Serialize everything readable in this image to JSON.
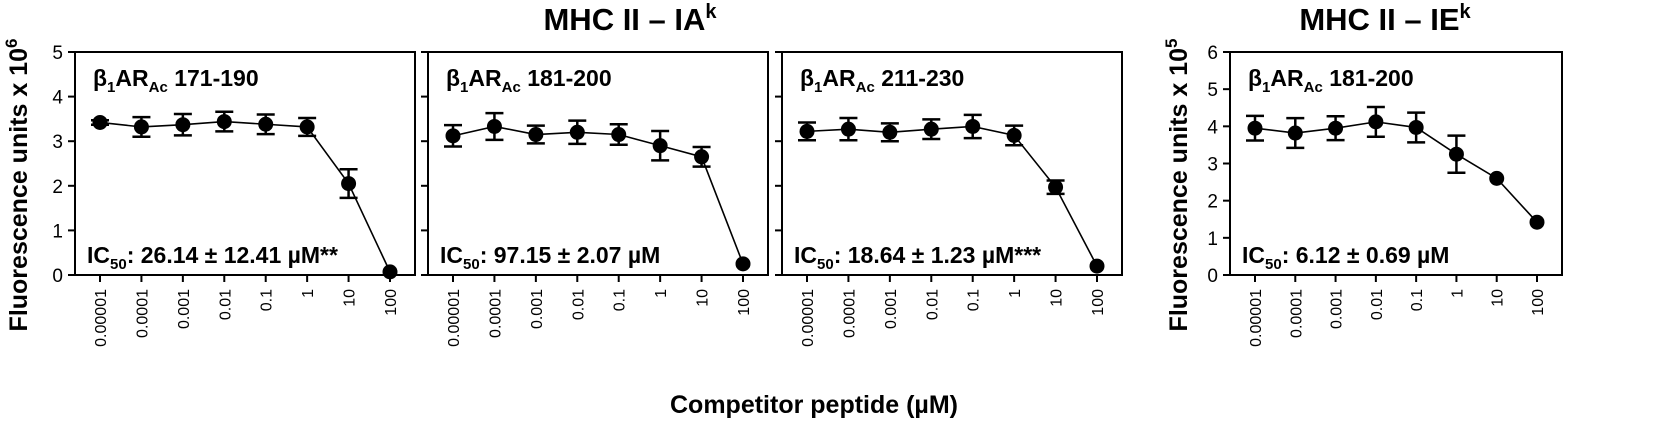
{
  "figure": {
    "group_titles": [
      {
        "base": "MHC II – IA",
        "sup": "k"
      },
      {
        "base": "MHC II – IE",
        "sup": "k"
      }
    ],
    "ylabels": [
      {
        "base": "Fluorescence units x 10",
        "sup": "6"
      },
      {
        "base": "Fluorescence units x 10",
        "sup": "5"
      }
    ],
    "xlabel": "Competitor peptide (µM)"
  },
  "chart_data": [
    {
      "type": "line",
      "label": {
        "beta": "β",
        "sub1": "1",
        "ar": "AR",
        "sub2": "Ac",
        "range": " 171-190"
      },
      "ic50": {
        "pre": "IC",
        "sub": "50",
        "text": ": 26.14 ± 12.41 µM**"
      },
      "categories": [
        "0.00001",
        "0.0001",
        "0.001",
        "0.01",
        "0.1",
        "1",
        "10",
        "100"
      ],
      "values": [
        3.42,
        3.32,
        3.37,
        3.44,
        3.38,
        3.32,
        2.05,
        0.07
      ],
      "errors": [
        0.05,
        0.22,
        0.24,
        0.22,
        0.22,
        0.2,
        0.32,
        0.0
      ],
      "ylim": [
        0,
        5
      ],
      "yticks": [
        "0",
        "1",
        "2",
        "3",
        "4",
        "5"
      ]
    },
    {
      "type": "line",
      "label": {
        "beta": "β",
        "sub1": "1",
        "ar": "AR",
        "sub2": "Ac",
        "range": " 181-200"
      },
      "ic50": {
        "pre": "IC",
        "sub": "50",
        "text": ": 97.15 ± 2.07 µM"
      },
      "categories": [
        "0.00001",
        "0.0001",
        "0.001",
        "0.01",
        "0.1",
        "1",
        "10",
        "100"
      ],
      "values": [
        3.12,
        3.33,
        3.15,
        3.2,
        3.15,
        2.9,
        2.65,
        0.25
      ],
      "errors": [
        0.24,
        0.3,
        0.2,
        0.26,
        0.23,
        0.33,
        0.22,
        0.0
      ],
      "ylim": [
        0,
        5
      ],
      "yticks": [
        "0",
        "1",
        "2",
        "3",
        "4",
        "5"
      ]
    },
    {
      "type": "line",
      "label": {
        "beta": "β",
        "sub1": "1",
        "ar": "AR",
        "sub2": "Ac",
        "range": " 211-230"
      },
      "ic50": {
        "pre": "IC",
        "sub": "50",
        "text": ": 18.64 ± 1.23 µM***"
      },
      "categories": [
        "0.00001",
        "0.0001",
        "0.001",
        "0.01",
        "0.1",
        "1",
        "10",
        "100"
      ],
      "values": [
        3.22,
        3.27,
        3.2,
        3.27,
        3.33,
        3.13,
        1.97,
        0.2
      ],
      "errors": [
        0.2,
        0.25,
        0.2,
        0.22,
        0.26,
        0.22,
        0.15,
        0.0
      ],
      "ylim": [
        0,
        5
      ],
      "yticks": [
        "0",
        "1",
        "2",
        "3",
        "4",
        "5"
      ]
    },
    {
      "type": "line",
      "label": {
        "beta": "β",
        "sub1": "1",
        "ar": "AR",
        "sub2": "Ac",
        "range": " 181-200"
      },
      "ic50": {
        "pre": "IC",
        "sub": "50",
        "text": ": 6.12 ± 0.69 µM"
      },
      "categories": [
        "0.00001",
        "0.0001",
        "0.001",
        "0.01",
        "0.1",
        "1",
        "10",
        "100"
      ],
      "values": [
        3.95,
        3.82,
        3.95,
        4.12,
        3.97,
        3.25,
        2.6,
        1.42
      ],
      "errors": [
        0.33,
        0.4,
        0.32,
        0.4,
        0.4,
        0.5,
        0.0,
        0.0
      ],
      "ylim": [
        0,
        6
      ],
      "yticks": [
        "0",
        "1",
        "2",
        "3",
        "4",
        "5",
        "6"
      ]
    }
  ]
}
